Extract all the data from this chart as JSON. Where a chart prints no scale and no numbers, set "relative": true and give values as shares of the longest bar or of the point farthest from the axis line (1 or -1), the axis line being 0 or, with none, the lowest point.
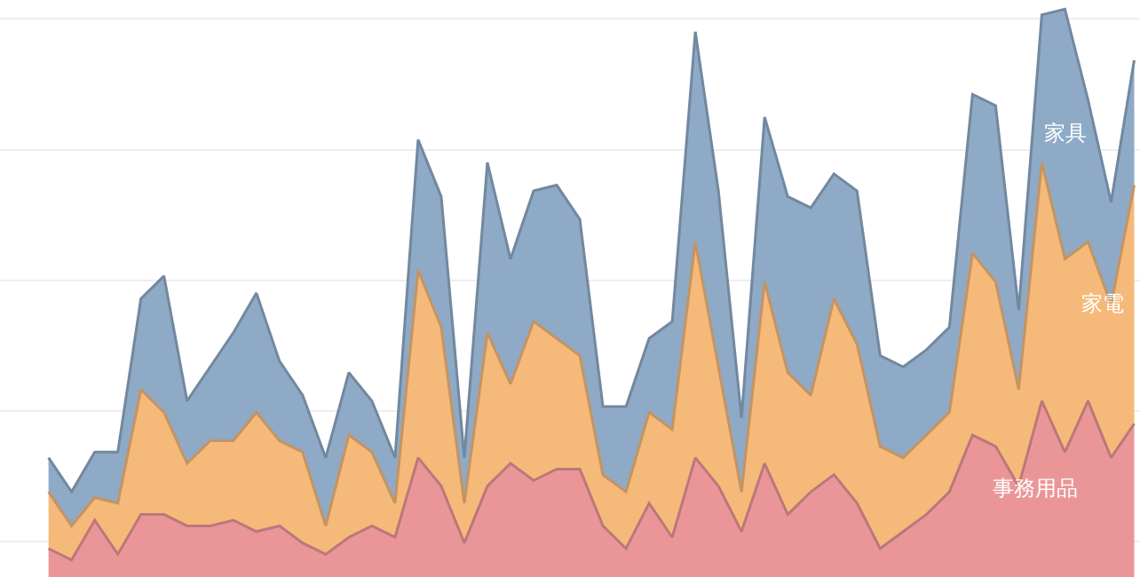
{
  "chart_data": {
    "type": "area",
    "stacked": true,
    "relative": true,
    "grid": "y",
    "legend": false,
    "categories": [
      null,
      null,
      null,
      null,
      null,
      null,
      null,
      null,
      null,
      null,
      null,
      null,
      null,
      null,
      null,
      null,
      null,
      null,
      null,
      null,
      null,
      null,
      null,
      null,
      null,
      null,
      null,
      null,
      null,
      null,
      null,
      null,
      null,
      null,
      null,
      null,
      null,
      null,
      null,
      null,
      null,
      null,
      null,
      null,
      null,
      null,
      null,
      null
    ],
    "series": [
      {
        "name": "事務用品",
        "color": "#ea9699",
        "values": [
          0.05,
          0.03,
          0.1,
          0.04,
          0.11,
          0.11,
          0.09,
          0.09,
          0.1,
          0.08,
          0.09,
          0.06,
          0.04,
          0.07,
          0.09,
          0.07,
          0.21,
          0.16,
          0.06,
          0.16,
          0.2,
          0.17,
          0.19,
          0.19,
          0.09,
          0.05,
          0.13,
          0.07,
          0.21,
          0.16,
          0.08,
          0.2,
          0.11,
          0.15,
          0.18,
          0.13,
          0.05,
          0.08,
          0.11,
          0.15,
          0.25,
          0.23,
          0.16,
          0.31,
          0.22,
          0.31,
          0.21,
          0.27
        ]
      },
      {
        "name": "家電",
        "color": "#f5b97a",
        "values": [
          0.1,
          0.06,
          0.04,
          0.09,
          0.22,
          0.18,
          0.11,
          0.15,
          0.14,
          0.21,
          0.15,
          0.16,
          0.05,
          0.18,
          0.13,
          0.06,
          0.33,
          0.28,
          0.07,
          0.27,
          0.14,
          0.28,
          0.23,
          0.2,
          0.09,
          0.1,
          0.16,
          0.19,
          0.38,
          0.21,
          0.07,
          0.32,
          0.25,
          0.17,
          0.31,
          0.28,
          0.18,
          0.13,
          0.14,
          0.14,
          0.32,
          0.29,
          0.17,
          0.42,
          0.34,
          0.28,
          0.27,
          0.42
        ]
      },
      {
        "name": "家具",
        "color": "#8eaac7",
        "values": [
          0.06,
          0.06,
          0.08,
          0.09,
          0.16,
          0.24,
          0.11,
          0.13,
          0.19,
          0.21,
          0.14,
          0.1,
          0.12,
          0.11,
          0.09,
          0.08,
          0.23,
          0.23,
          0.08,
          0.3,
          0.22,
          0.23,
          0.27,
          0.24,
          0.12,
          0.15,
          0.13,
          0.19,
          0.37,
          0.31,
          0.13,
          0.29,
          0.31,
          0.33,
          0.22,
          0.27,
          0.16,
          0.16,
          0.15,
          0.15,
          0.28,
          0.31,
          0.14,
          0.26,
          0.44,
          0.25,
          0.18,
          0.22
        ]
      }
    ]
  }
}
